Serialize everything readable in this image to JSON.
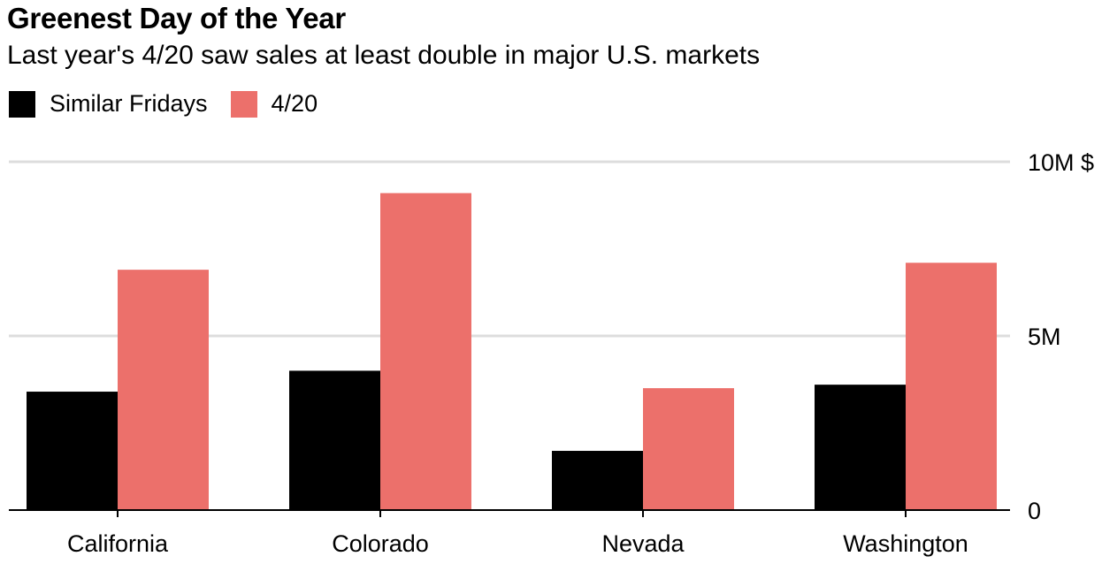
{
  "title": "Greenest Day of the Year",
  "subtitle": "Last year's 4/20 saw sales at least double in major U.S. markets",
  "colors": {
    "similar_fridays": "#000000",
    "four_twenty": "#ec706b",
    "gridline": "#dddddd",
    "axis": "#000000"
  },
  "legend": [
    {
      "label": "Similar Fridays",
      "color": "#000000"
    },
    {
      "label": "4/20",
      "color": "#ec706b"
    }
  ],
  "chart_data": {
    "type": "bar",
    "title": "Greenest Day of the Year",
    "subtitle": "Last year's 4/20 saw sales at least double in major U.S. markets",
    "categories": [
      "California",
      "Colorado",
      "Nevada",
      "Washington"
    ],
    "series": [
      {
        "name": "Similar Fridays",
        "values": [
          3.4,
          4.0,
          1.7,
          3.6
        ]
      },
      {
        "name": "4/20",
        "values": [
          6.9,
          9.1,
          3.5,
          7.1
        ]
      }
    ],
    "ylim": [
      0,
      10
    ],
    "yticks": [
      0,
      5,
      10
    ],
    "ytick_labels": [
      "0",
      "5M",
      "10M $"
    ],
    "xlabel": "",
    "ylabel": "",
    "yaxis_side": "right",
    "grid": true,
    "legend_position": "top-left"
  }
}
